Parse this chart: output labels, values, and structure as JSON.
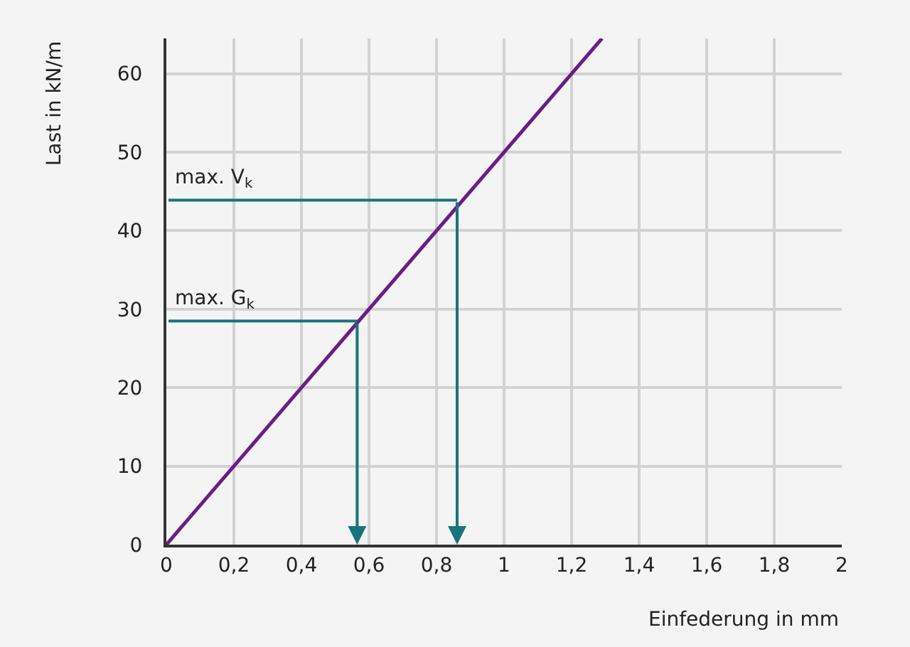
{
  "chart_data": {
    "type": "line",
    "xlabel": "Einfederung in mm",
    "ylabel": "Last in kN/m",
    "x": [
      0,
      1.29
    ],
    "series": [
      {
        "color": "#6b1d86",
        "values": [
          0,
          64.5
        ]
      }
    ],
    "annotations": [
      {
        "text": "max. G$_{k}$",
        "x": 0.565,
        "y": 28.5
      },
      {
        "text": "max. V$_{k}$",
        "x": 0.861,
        "y": 43.9
      }
    ],
    "xlim": [
      0,
      2
    ],
    "ylim": [
      0,
      64.5
    ],
    "xticks": [
      0,
      {
        "value": 0.2,
        "label": "0,2"
      },
      {
        "value": 0.4,
        "label": "0,4"
      },
      {
        "value": 0.6,
        "label": "0,6"
      },
      {
        "value": 0.8,
        "label": "0,8"
      },
      1,
      {
        "value": 1.2,
        "label": "1,2"
      },
      {
        "value": 1.4,
        "label": "1,4"
      },
      {
        "value": 1.6,
        "label": "1,6"
      },
      {
        "value": 1.8,
        "label": "1,8"
      },
      2
    ],
    "yticks": [
      0,
      10,
      20,
      30,
      40,
      50,
      60
    ],
    "grid": true,
    "marker": "none",
    "line_style": "solid"
  }
}
